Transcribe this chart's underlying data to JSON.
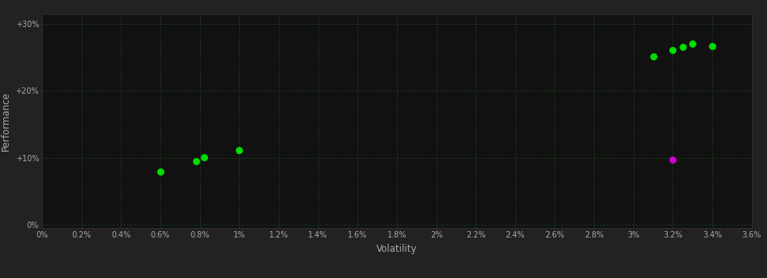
{
  "background_color": "#222222",
  "plot_bg_color": "#111111",
  "grid_color": "#1a3a1a",
  "text_color": "#aaaaaa",
  "xlabel": "Volatility",
  "ylabel": "Performance",
  "xlim": [
    0.0,
    0.036
  ],
  "ylim": [
    -0.005,
    0.315
  ],
  "xticks": [
    0.0,
    0.002,
    0.004,
    0.006,
    0.008,
    0.01,
    0.012,
    0.014,
    0.016,
    0.018,
    0.02,
    0.022,
    0.024,
    0.026,
    0.028,
    0.03,
    0.032,
    0.034,
    0.036
  ],
  "yticks": [
    0.0,
    0.1,
    0.2,
    0.3
  ],
  "ytick_labels": [
    "0%",
    "+10%",
    "+20%",
    "+30%"
  ],
  "xtick_labels": [
    "0%",
    "0.2%",
    "0.4%",
    "0.6%",
    "0.8%",
    "1%",
    "1.2%",
    "1.4%",
    "1.6%",
    "1.8%",
    "2%",
    "2.2%",
    "2.4%",
    "2.6%",
    "2.8%",
    "3%",
    "3.2%",
    "3.4%",
    "3.6%"
  ],
  "green_points": [
    [
      0.006,
      0.079
    ],
    [
      0.0078,
      0.095
    ],
    [
      0.0082,
      0.101
    ],
    [
      0.01,
      0.111
    ],
    [
      0.031,
      0.252
    ],
    [
      0.032,
      0.261
    ],
    [
      0.0325,
      0.266
    ],
    [
      0.033,
      0.271
    ],
    [
      0.034,
      0.267
    ]
  ],
  "magenta_points": [
    [
      0.032,
      0.097
    ]
  ],
  "green_color": "#00dd00",
  "magenta_color": "#cc00cc",
  "marker_size": 30
}
